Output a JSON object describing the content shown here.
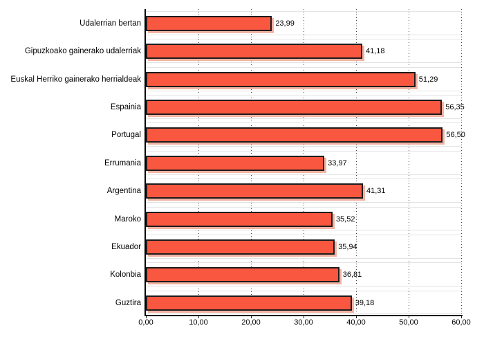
{
  "chart_data": {
    "type": "bar",
    "orientation": "horizontal",
    "title": "",
    "xlabel": "",
    "ylabel": "",
    "categories": [
      "Udalerrian bertan",
      "Gipuzkoako gainerako udalerriak",
      "Euskal Herriko gainerako herrialdeak",
      "Espainia",
      "Portugal",
      "Errumania",
      "Argentina",
      "Maroko",
      "Ekuador",
      "Kolonbia",
      "Guztira"
    ],
    "values": [
      23.99,
      41.18,
      51.29,
      56.35,
      56.5,
      33.97,
      41.31,
      35.52,
      35.94,
      36.81,
      39.18
    ],
    "value_labels": [
      "23,99",
      "41,18",
      "51,29",
      "56,35",
      "56,50",
      "33,97",
      "41,31",
      "35,52",
      "35,94",
      "36,81",
      "39,18"
    ],
    "x_ticks": [
      "0,00",
      "10,00",
      "20,00",
      "30,00",
      "40,00",
      "50,00",
      "60,00"
    ],
    "x_tick_values": [
      0,
      10,
      20,
      30,
      40,
      50,
      60
    ],
    "xlim": [
      0,
      60
    ],
    "grid": "vertical-dotted",
    "legend": "none",
    "colors": {
      "bar_fill": "#f95740",
      "bar_border": "#1c1c1c",
      "bar_shadow": "#f1b3a3",
      "gridline_dots": "#3f3f3f",
      "row_guide_line": "#e3e3e3",
      "axis": "#000000",
      "text": "#000000",
      "background": "#ffffff"
    }
  }
}
